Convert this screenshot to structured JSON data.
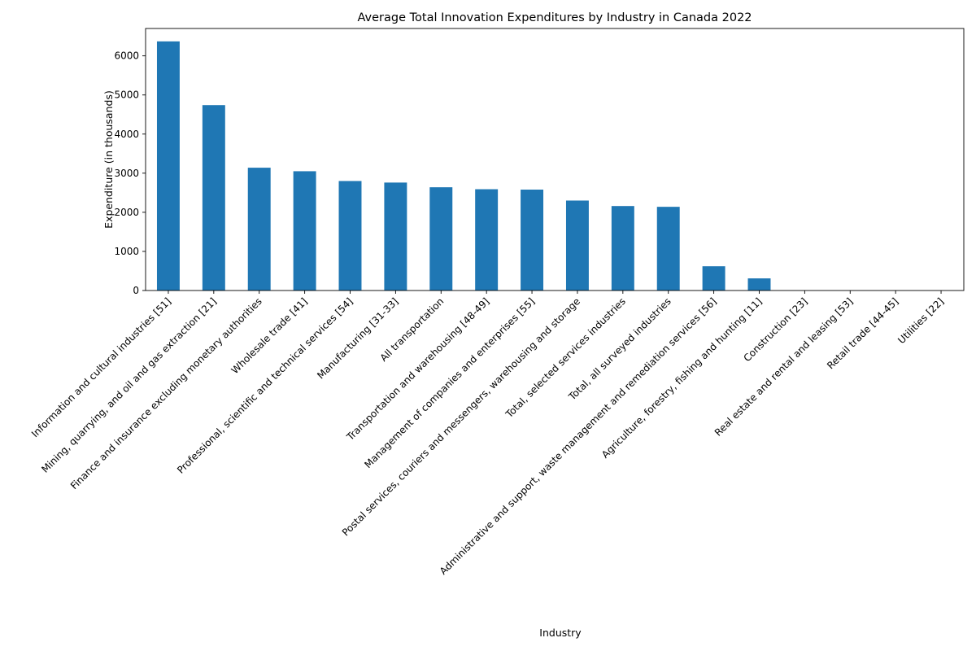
{
  "chart_data": {
    "type": "bar",
    "title": "Average Total Innovation Expenditures by Industry in Canada 2022",
    "xlabel": "Industry",
    "ylabel": "Expenditure (in thousands)",
    "ylim": [
      0,
      6700
    ],
    "yticks": [
      0,
      1000,
      2000,
      3000,
      4000,
      5000,
      6000
    ],
    "grid": false,
    "color": "#1f77b4",
    "categories": [
      "Information and cultural industries [51]",
      "Mining, quarrying, and oil and gas extraction [21]",
      "Finance and insurance excluding monetary authorities",
      "Wholesale trade [41]",
      "Professional, scientific and technical services [54]",
      "Manufacturing [31-33]",
      "All transportation",
      "Transportation and warehousing [48-49]",
      "Management of companies and enterprises [55]",
      "Postal services, couriers and messengers, warehousing and storage",
      "Total, selected services industries",
      "Total, all surveyed industries",
      "Administrative and support, waste management and remediation services [56]",
      "Agriculture, forestry, fishing and hunting [11]",
      "Construction [23]",
      "Real estate and rental and leasing [53]",
      "Retail trade [44-45]",
      "Utilities [22]"
    ],
    "values": [
      6370,
      4740,
      3140,
      3050,
      2800,
      2760,
      2640,
      2590,
      2580,
      2300,
      2160,
      2140,
      620,
      310,
      0,
      0,
      0,
      0
    ]
  }
}
